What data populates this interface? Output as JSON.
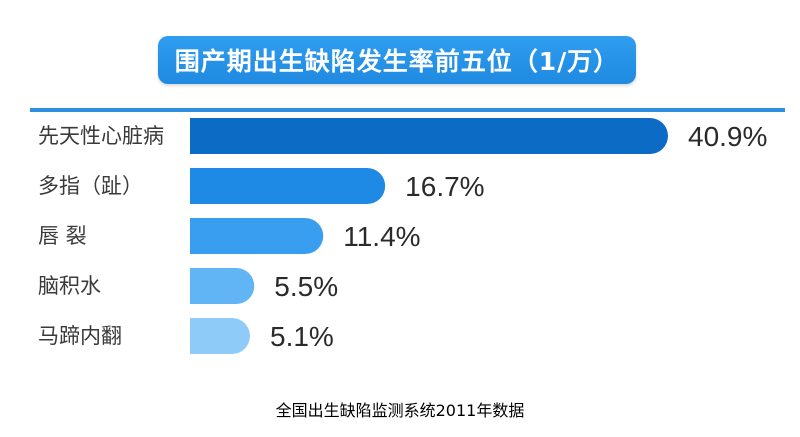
{
  "chart_data": {
    "type": "bar",
    "title": "围产期出生缺陷发生率前五位（1/万）",
    "categories": [
      "先天性心脏病",
      "多指（趾）",
      "唇 裂",
      "脑积水",
      "马蹄内翻"
    ],
    "values": [
      40.9,
      16.7,
      11.4,
      5.5,
      5.1
    ],
    "value_labels": [
      "40.9%",
      "16.7%",
      "11.4%",
      "5.5%",
      "5.1%"
    ],
    "bar_colors": [
      "#0c6bc4",
      "#1f8ae6",
      "#3a9ef0",
      "#62b5f4",
      "#8ecbf8"
    ],
    "orientation": "horizontal"
  },
  "footnote": "全国出生缺陷监测系统2011年数据",
  "colors": {
    "title_bg": "#2094e8",
    "rule": "#2f8fe0",
    "label_text": "#3a3a3a",
    "value_text": "#2a2a2a"
  }
}
